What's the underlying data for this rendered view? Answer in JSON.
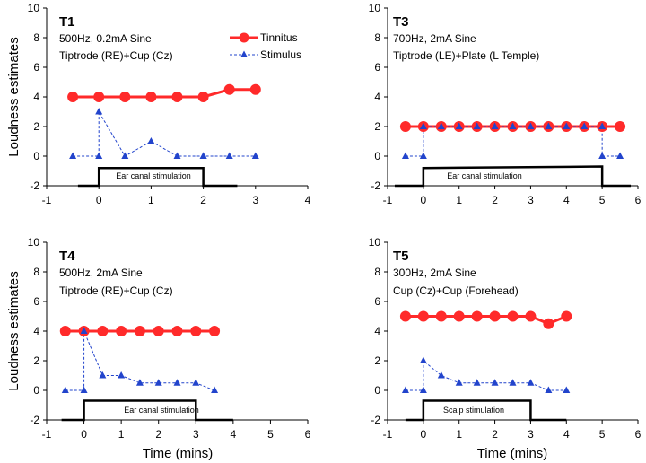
{
  "colors": {
    "tinnitus": "#ff2a2a",
    "stimulus": "#2244cc",
    "stim_bar": "#000000",
    "axis": "#000000"
  },
  "legend": {
    "tinnitus": "Tinnitus",
    "stimulus": "Stimulus"
  },
  "axis_labels": {
    "y": "Loudness estimates",
    "x": "Time (mins)"
  },
  "chart_data": [
    {
      "type": "line",
      "title": "T1",
      "description": [
        "500Hz, 0.2mA Sine",
        "Tiptrode (RE)+Cup (Cz)"
      ],
      "xlim": [
        -1,
        4
      ],
      "xticks": [
        -1,
        0,
        1,
        2,
        3,
        4
      ],
      "ylim": [
        -2,
        10
      ],
      "yticks": [
        -2,
        0,
        2,
        4,
        6,
        8,
        10
      ],
      "series": [
        {
          "name": "Tinnitus",
          "x": [
            -0.5,
            0,
            0.5,
            1,
            1.5,
            2,
            2.5,
            3
          ],
          "values": [
            4,
            4,
            4,
            4,
            4,
            4,
            4.5,
            4.5
          ]
        },
        {
          "name": "Stimulus",
          "x": [
            -0.5,
            0,
            0,
            0.5,
            1,
            1.5,
            2,
            2,
            2.5,
            3
          ],
          "values": [
            0,
            0,
            3,
            0,
            1,
            0,
            0,
            0,
            0,
            0
          ]
        }
      ],
      "stim_bar": {
        "x": [
          -0.4,
          0,
          0,
          2,
          2,
          2.65
        ],
        "y": [
          -2,
          -2,
          -0.8,
          -0.8,
          -2,
          -2
        ]
      },
      "stim_label": "Ear canal stimulation"
    },
    {
      "type": "line",
      "title": "T3",
      "description": [
        "700Hz, 2mA Sine",
        "Tiptrode (LE)+Plate (L Temple)"
      ],
      "xlim": [
        -1,
        6
      ],
      "xticks": [
        -1,
        0,
        1,
        2,
        3,
        4,
        5,
        6
      ],
      "ylim": [
        -2,
        10
      ],
      "yticks": [
        -2,
        0,
        2,
        4,
        6,
        8,
        10
      ],
      "series": [
        {
          "name": "Tinnitus",
          "x": [
            -0.5,
            0,
            0.5,
            1,
            1.5,
            2,
            2.5,
            3,
            3.5,
            4,
            4.5,
            5,
            5.5
          ],
          "values": [
            2,
            2,
            2,
            2,
            2,
            2,
            2,
            2,
            2,
            2,
            2,
            2,
            2
          ]
        },
        {
          "name": "Stimulus",
          "x": [
            -0.5,
            0,
            0,
            0.5,
            1,
            1.5,
            2,
            2.5,
            3,
            3.5,
            4,
            4.5,
            5,
            5,
            5.5
          ],
          "values": [
            0,
            0,
            2,
            2,
            2,
            2,
            2,
            2,
            2,
            2,
            2,
            2,
            2,
            0,
            0
          ]
        }
      ],
      "stim_bar": {
        "x": [
          -0.8,
          0,
          0,
          5,
          5,
          5.8
        ],
        "y": [
          -2,
          -2,
          -0.8,
          -0.7,
          -2,
          -2
        ]
      },
      "stim_label": "Ear canal stimulation"
    },
    {
      "type": "line",
      "title": "T4",
      "description": [
        "500Hz, 2mA Sine",
        "Tiptrode (RE)+Cup (Cz)"
      ],
      "xlim": [
        -1,
        6
      ],
      "xticks": [
        -1,
        0,
        1,
        2,
        3,
        4,
        5,
        6
      ],
      "ylim": [
        -2,
        10
      ],
      "yticks": [
        -2,
        0,
        2,
        4,
        6,
        8,
        10
      ],
      "series": [
        {
          "name": "Tinnitus",
          "x": [
            -0.5,
            0,
            0.5,
            1,
            1.5,
            2,
            2.5,
            3,
            3.5
          ],
          "values": [
            4,
            4,
            4,
            4,
            4,
            4,
            4,
            4,
            4
          ]
        },
        {
          "name": "Stimulus",
          "x": [
            -0.5,
            0,
            0,
            0.5,
            1,
            1.5,
            2,
            2.5,
            3,
            3.5
          ],
          "values": [
            0,
            0,
            4,
            1,
            1,
            0.5,
            0.5,
            0.5,
            0.5,
            0
          ]
        }
      ],
      "stim_bar": {
        "x": [
          -0.6,
          0,
          0,
          3,
          3,
          4
        ],
        "y": [
          -2,
          -2,
          -0.7,
          -0.7,
          -2,
          -2
        ]
      },
      "stim_label": "Ear canal stimulation"
    },
    {
      "type": "line",
      "title": "T5",
      "description": [
        "300Hz, 2mA Sine",
        "Cup (Cz)+Cup (Forehead)"
      ],
      "xlim": [
        -1,
        6
      ],
      "xticks": [
        -1,
        0,
        1,
        2,
        3,
        4,
        5,
        6
      ],
      "ylim": [
        -2,
        10
      ],
      "yticks": [
        -2,
        0,
        2,
        4,
        6,
        8,
        10
      ],
      "series": [
        {
          "name": "Tinnitus",
          "x": [
            -0.5,
            0,
            0.5,
            1,
            1.5,
            2,
            2.5,
            3,
            3.5,
            4
          ],
          "values": [
            5,
            5,
            5,
            5,
            5,
            5,
            5,
            5,
            4.5,
            5
          ]
        },
        {
          "name": "Stimulus",
          "x": [
            -0.5,
            0,
            0,
            0.5,
            1,
            1.5,
            2,
            2.5,
            3,
            3.5,
            4
          ],
          "values": [
            0,
            0,
            2,
            1,
            0.5,
            0.5,
            0.5,
            0.5,
            0.5,
            0,
            0
          ]
        }
      ],
      "stim_bar": {
        "x": [
          -0.5,
          0,
          0,
          3,
          3,
          4
        ],
        "y": [
          -2,
          -2,
          -0.7,
          -0.7,
          -2,
          -2
        ]
      },
      "stim_label": "Scalp stimulation"
    }
  ]
}
